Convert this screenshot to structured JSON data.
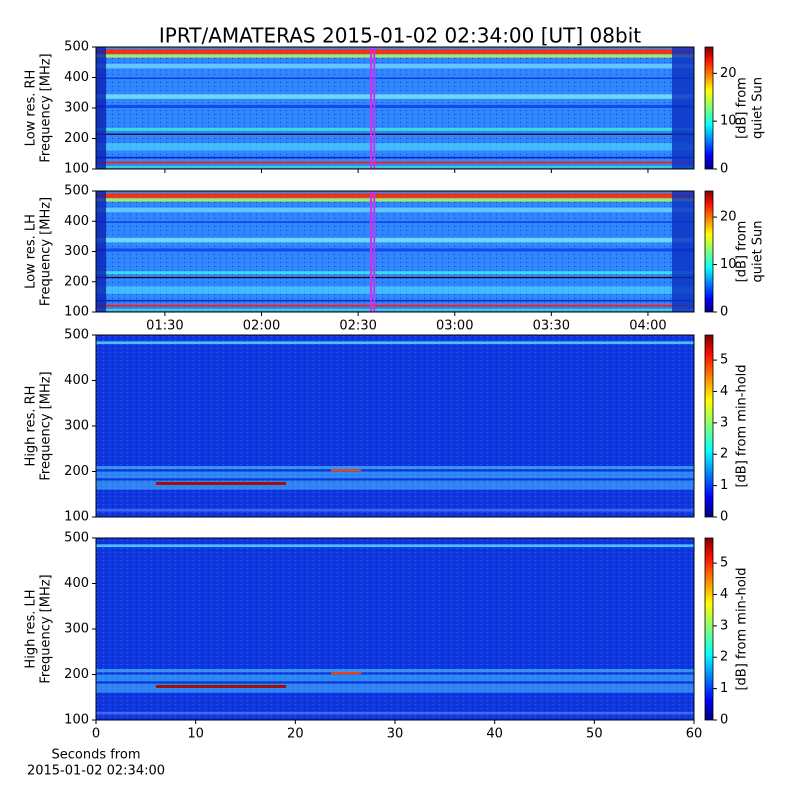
{
  "chart_data": [
    {
      "type": "spectrogram",
      "title": "IPRT/AMATERAS 2015-01-02 02:34:00 [UT]   08bit",
      "ylabel": [
        "Low res. RH",
        "Frequency [MHz]"
      ],
      "ylim": [
        100,
        500
      ],
      "yticks": [
        100,
        200,
        300,
        400,
        500
      ],
      "xlim": [
        68.6,
        254.3
      ],
      "marker_x": [
        154,
        155
      ],
      "marker_color": "#d030e8",
      "colorbar_label": [
        "[dB] from",
        "quiet Sun"
      ],
      "clim": [
        0,
        25.5
      ],
      "cticks": [
        0,
        10,
        20
      ],
      "colormap": "jet"
    },
    {
      "type": "spectrogram",
      "ylabel": [
        "Low res. LH",
        "Frequency [MHz]"
      ],
      "ylim": [
        100,
        500
      ],
      "yticks": [
        100,
        200,
        300,
        400,
        500
      ],
      "xlim": [
        68.6,
        254.3
      ],
      "xticks": [
        {
          "value": 90,
          "label": "01:30"
        },
        {
          "value": 120,
          "label": "02:00"
        },
        {
          "value": 150,
          "label": "02:30"
        },
        {
          "value": 180,
          "label": "03:00"
        },
        {
          "value": 210,
          "label": "03:30"
        },
        {
          "value": 240,
          "label": "04:00"
        }
      ],
      "marker_x": [
        154,
        155
      ],
      "marker_color": "#d030e8",
      "colorbar_label": [
        "[dB] from",
        "quiet Sun"
      ],
      "clim": [
        0,
        25.5
      ],
      "cticks": [
        0,
        10,
        20
      ],
      "colormap": "jet"
    },
    {
      "type": "spectrogram",
      "ylabel": [
        "High res. RH",
        "Frequency [MHz]"
      ],
      "ylim": [
        100,
        500
      ],
      "yticks": [
        100,
        200,
        300,
        400,
        500
      ],
      "xlim": [
        0,
        60
      ],
      "colorbar_label": [
        "[dB] from min-hold"
      ],
      "clim": [
        0,
        5.8
      ],
      "cticks": [
        0,
        1,
        2,
        3,
        4,
        5
      ],
      "colormap": "jet"
    },
    {
      "type": "spectrogram",
      "ylabel": [
        "High res. LH",
        "Frequency [MHz]"
      ],
      "ylim": [
        100,
        500
      ],
      "yticks": [
        100,
        200,
        300,
        400,
        500
      ],
      "xlim": [
        0,
        60
      ],
      "xticks": [
        0,
        10,
        20,
        30,
        40,
        50,
        60
      ],
      "xlabel": [
        "Seconds from",
        "2015-01-02 02:34:00"
      ],
      "colorbar_label": [
        "[dB] from min-hold"
      ],
      "clim": [
        0,
        5.8
      ],
      "cticks": [
        0,
        1,
        2,
        3,
        4,
        5
      ],
      "colormap": "jet"
    }
  ]
}
